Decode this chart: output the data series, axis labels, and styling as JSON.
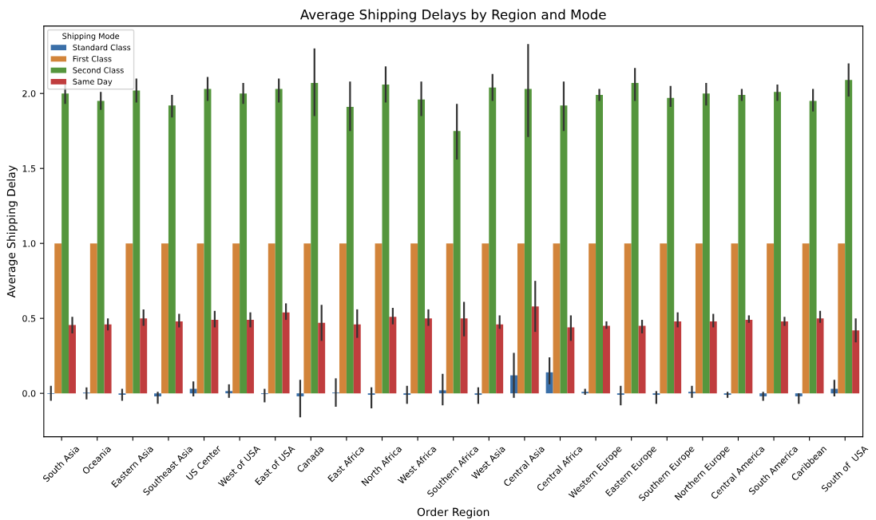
{
  "chart_data": {
    "type": "bar",
    "title": "Average Shipping Delays by Region and Mode",
    "xlabel": "Order Region",
    "ylabel": "Average Shipping Delay",
    "legend_title": "Shipping Mode",
    "legend": "top left",
    "grid": false,
    "categories": [
      "South Asia",
      "Oceania",
      "Eastern Asia",
      "Southeast Asia",
      "US Center",
      "West of USA",
      "East of USA",
      "Canada",
      "East Africa",
      "North Africa",
      "West Africa",
      "Southern Africa",
      "West Asia",
      "Central Asia",
      "Central Africa",
      "Western Europe",
      "Eastern Europe",
      "Southern Europe",
      "Northern Europe",
      "Central America",
      "South America",
      "Caribbean",
      "South of  USA"
    ],
    "ylim": [
      -0.29,
      2.45
    ],
    "yticks": [
      {
        "value": 0,
        "label": "0.0"
      },
      0.5,
      {
        "value": 1,
        "label": "1.0"
      },
      1.5,
      {
        "value": 2,
        "label": "2.0"
      }
    ],
    "series": [
      {
        "name": "Standard Class",
        "color": "#3a6fa8",
        "values": [
          -0.005,
          0.005,
          -0.01,
          -0.02,
          0.03,
          0.015,
          -0.005,
          -0.02,
          0.005,
          -0.01,
          -0.01,
          0.02,
          -0.01,
          0.12,
          0.14,
          0.01,
          -0.01,
          -0.01,
          0.01,
          -0.01,
          -0.02,
          -0.02,
          0.03
        ],
        "errors": [
          [
            -0.05,
            0.05
          ],
          [
            -0.04,
            0.04
          ],
          [
            -0.05,
            0.03
          ],
          [
            -0.07,
            0.01
          ],
          [
            -0.02,
            0.08
          ],
          [
            -0.03,
            0.06
          ],
          [
            -0.06,
            0.03
          ],
          [
            -0.16,
            0.09
          ],
          [
            -0.09,
            0.1
          ],
          [
            -0.1,
            0.04
          ],
          [
            -0.07,
            0.05
          ],
          [
            -0.08,
            0.13
          ],
          [
            -0.07,
            0.04
          ],
          [
            -0.03,
            0.27
          ],
          [
            0.06,
            0.24
          ],
          [
            -0.01,
            0.03
          ],
          [
            -0.08,
            0.05
          ],
          [
            -0.07,
            0.015
          ],
          [
            -0.03,
            0.05
          ],
          [
            -0.03,
            0.01
          ],
          [
            -0.05,
            0.01
          ],
          [
            -0.07,
            0.0
          ],
          [
            -0.02,
            0.09
          ]
        ]
      },
      {
        "name": "First Class",
        "color": "#d2843a",
        "values": [
          1.0,
          1.0,
          1.0,
          1.0,
          1.0,
          1.0,
          1.0,
          1.0,
          1.0,
          1.0,
          1.0,
          1.0,
          1.0,
          1.0,
          1.0,
          1.0,
          1.0,
          1.0,
          1.0,
          1.0,
          1.0,
          1.0,
          1.0
        ]
      },
      {
        "name": "Second Class",
        "color": "#55963d",
        "values": [
          2.0,
          1.95,
          2.02,
          1.92,
          2.03,
          2.0,
          2.03,
          2.07,
          1.91,
          2.06,
          1.96,
          1.75,
          2.04,
          2.03,
          1.92,
          1.99,
          2.07,
          1.97,
          2.0,
          1.99,
          2.01,
          1.95,
          2.09
        ],
        "errors": [
          [
            1.93,
            2.06
          ],
          [
            1.89,
            2.01
          ],
          [
            1.94,
            2.1
          ],
          [
            1.84,
            1.99
          ],
          [
            1.95,
            2.11
          ],
          [
            1.93,
            2.07
          ],
          [
            1.94,
            2.1
          ],
          [
            1.85,
            2.3
          ],
          [
            1.75,
            2.08
          ],
          [
            1.94,
            2.18
          ],
          [
            1.85,
            2.08
          ],
          [
            1.56,
            1.93
          ],
          [
            1.95,
            2.13
          ],
          [
            1.71,
            2.33
          ],
          [
            1.75,
            2.08
          ],
          [
            1.95,
            2.03
          ],
          [
            1.95,
            2.17
          ],
          [
            1.91,
            2.05
          ],
          [
            1.92,
            2.07
          ],
          [
            1.95,
            2.03
          ],
          [
            1.95,
            2.06
          ],
          [
            1.88,
            2.03
          ],
          [
            1.98,
            2.2
          ]
        ]
      },
      {
        "name": "Same Day",
        "color": "#c03d3e",
        "values": [
          0.456,
          0.46,
          0.5,
          0.48,
          0.49,
          0.49,
          0.54,
          0.47,
          0.46,
          0.51,
          0.5,
          0.5,
          0.46,
          0.58,
          0.44,
          0.45,
          0.45,
          0.48,
          0.48,
          0.49,
          0.48,
          0.5,
          0.42
        ],
        "errors": [
          [
            0.4,
            0.51
          ],
          [
            0.42,
            0.5
          ],
          [
            0.45,
            0.56
          ],
          [
            0.44,
            0.53
          ],
          [
            0.44,
            0.55
          ],
          [
            0.44,
            0.54
          ],
          [
            0.49,
            0.6
          ],
          [
            0.35,
            0.59
          ],
          [
            0.37,
            0.56
          ],
          [
            0.46,
            0.57
          ],
          [
            0.45,
            0.56
          ],
          [
            0.38,
            0.61
          ],
          [
            0.43,
            0.52
          ],
          [
            0.41,
            0.75
          ],
          [
            0.35,
            0.52
          ],
          [
            0.43,
            0.48
          ],
          [
            0.4,
            0.49
          ],
          [
            0.44,
            0.54
          ],
          [
            0.44,
            0.53
          ],
          [
            0.47,
            0.52
          ],
          [
            0.45,
            0.51
          ],
          [
            0.47,
            0.55
          ],
          [
            0.34,
            0.5
          ]
        ]
      }
    ]
  }
}
